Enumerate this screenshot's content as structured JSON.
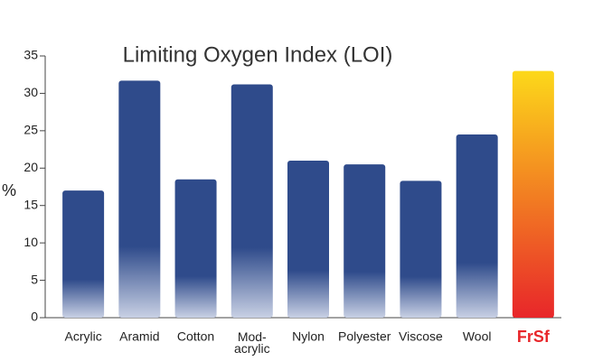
{
  "chart_data": {
    "type": "bar",
    "title": "Limiting Oxygen Index (LOI)",
    "y_label": "%",
    "categories": [
      "Acrylic",
      "Aramid",
      "Cotton",
      "Mod-\nacrylic",
      "Nylon",
      "Polyester",
      "Viscose",
      "Wool",
      "FrSf"
    ],
    "values": [
      17,
      31.7,
      18.5,
      31.2,
      21,
      20.5,
      18.3,
      24.5,
      33
    ],
    "color": "#2f4b8b",
    "highlight_index": 8,
    "highlight_colors": [
      "#e8262a",
      "#fcd81a"
    ],
    "ylim": [
      0,
      35
    ],
    "yticks": [
      0,
      5,
      10,
      15,
      20,
      25,
      30,
      35
    ]
  }
}
